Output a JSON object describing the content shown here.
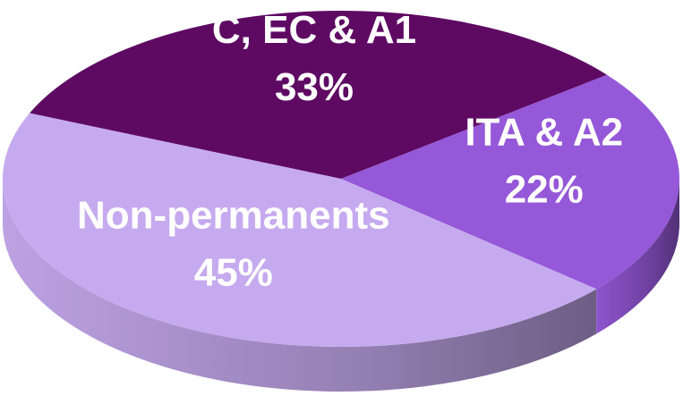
{
  "chart_data": {
    "type": "pie3d",
    "categories": [
      "C, EC & A1",
      "ITA & A2",
      "Non-permanents"
    ],
    "values": [
      33,
      22,
      45
    ],
    "value_labels": [
      "33%",
      "22%",
      "45%"
    ],
    "colors": [
      "#5e0a63",
      "#9558d8",
      "#c6aaef"
    ]
  }
}
